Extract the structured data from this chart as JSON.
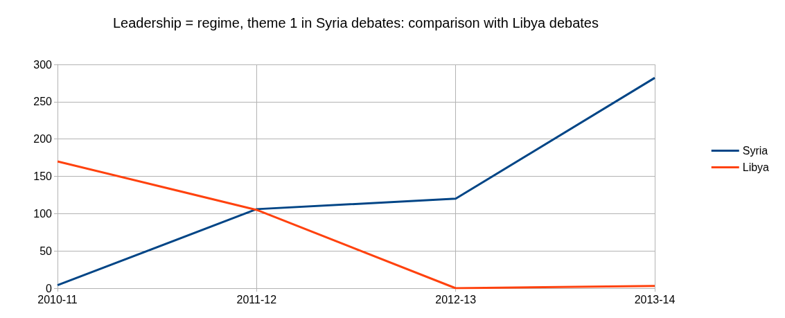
{
  "chart_data": {
    "type": "line",
    "title": "Leadership = regime, theme 1 in Syria debates: comparison with Libya debates",
    "categories": [
      "2010-11",
      "2011-12",
      "2012-13",
      "2013-14"
    ],
    "series": [
      {
        "name": "Syria",
        "color": "#004586",
        "values": [
          4,
          106,
          120,
          282
        ]
      },
      {
        "name": "Libya",
        "color": "#ff420e",
        "values": [
          170,
          105,
          0,
          3
        ]
      }
    ],
    "ylim": [
      0,
      300
    ],
    "yticks": [
      0,
      50,
      100,
      150,
      200,
      250,
      300
    ],
    "grid": true,
    "legend": "right",
    "marker": "none",
    "line_style": "solid"
  }
}
